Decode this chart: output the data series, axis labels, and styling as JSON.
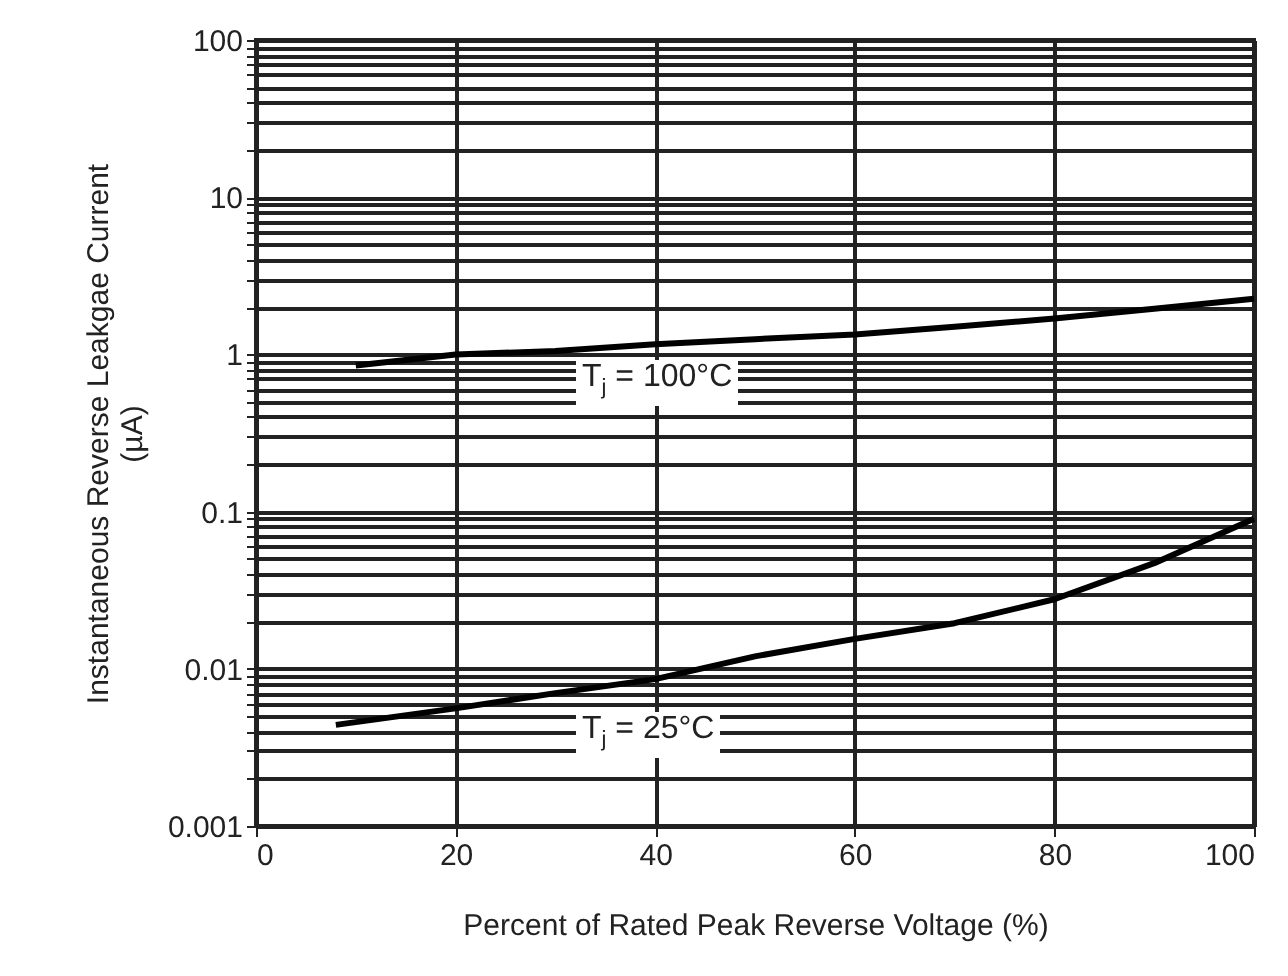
{
  "chart_data": {
    "type": "line",
    "xlabel": "Percent of Rated Peak Reverse Voltage (%)",
    "ylabel": "Instantaneous Reverse Leakgae Current\n(µA)",
    "log": "y",
    "grid": true,
    "marker": "none",
    "line_style": "solid",
    "xlim": [
      0,
      100
    ],
    "xticks": [
      0,
      20,
      40,
      60,
      80,
      100
    ],
    "ylim": [
      0.001,
      100
    ],
    "yticks": [
      0.001,
      {
        "value": 0.002,
        "label": null
      },
      {
        "value": 0.003,
        "label": null
      },
      {
        "value": 0.004,
        "label": null
      },
      {
        "value": 0.005,
        "label": null
      },
      {
        "value": 0.006,
        "label": null
      },
      {
        "value": 0.007,
        "label": null
      },
      {
        "value": 0.008,
        "label": null
      },
      {
        "value": 0.009,
        "label": null
      },
      0.01,
      {
        "value": 0.02,
        "label": null
      },
      {
        "value": 0.03,
        "label": null
      },
      {
        "value": 0.04,
        "label": null
      },
      {
        "value": 0.05,
        "label": null
      },
      {
        "value": 0.06,
        "label": null
      },
      {
        "value": 0.07,
        "label": null
      },
      {
        "value": 0.08,
        "label": null
      },
      {
        "value": 0.09,
        "label": null
      },
      0.1,
      {
        "value": 0.2,
        "label": null
      },
      {
        "value": 0.3,
        "label": null
      },
      {
        "value": 0.4,
        "label": null
      },
      {
        "value": 0.5,
        "label": null
      },
      {
        "value": 0.6,
        "label": null
      },
      {
        "value": 0.7,
        "label": null
      },
      {
        "value": 0.8,
        "label": null
      },
      {
        "value": 0.9,
        "label": null
      },
      1,
      {
        "value": 2,
        "label": null
      },
      {
        "value": 3,
        "label": null
      },
      {
        "value": 4,
        "label": null
      },
      {
        "value": 5,
        "label": null
      },
      {
        "value": 6,
        "label": null
      },
      {
        "value": 7,
        "label": null
      },
      {
        "value": 8,
        "label": null
      },
      {
        "value": 9,
        "label": null
      },
      10,
      {
        "value": 20,
        "label": null
      },
      {
        "value": 30,
        "label": null
      },
      {
        "value": 40,
        "label": null
      },
      {
        "value": 50,
        "label": null
      },
      {
        "value": 60,
        "label": null
      },
      {
        "value": 70,
        "label": null
      },
      {
        "value": 80,
        "label": null
      },
      {
        "value": 90,
        "label": null
      },
      100
    ],
    "series": [
      {
        "name": "T$_{j}$ = 100°C",
        "color": "#000000",
        "x": [
          10,
          20,
          30,
          40,
          50,
          60,
          70,
          80,
          90,
          100
        ],
        "values": [
          0.85,
          1.0,
          1.05,
          1.16,
          1.25,
          1.34,
          1.5,
          1.69,
          1.95,
          2.26
        ]
      },
      {
        "name": "T$_{j}$ = 25°C",
        "color": "#000000",
        "x": [
          8,
          20,
          30,
          40,
          50,
          60,
          70,
          80,
          90,
          100
        ],
        "values": [
          0.0044,
          0.0056,
          0.007,
          0.0086,
          0.012,
          0.0155,
          0.0195,
          0.0277,
          0.047,
          0.09
        ]
      }
    ]
  }
}
